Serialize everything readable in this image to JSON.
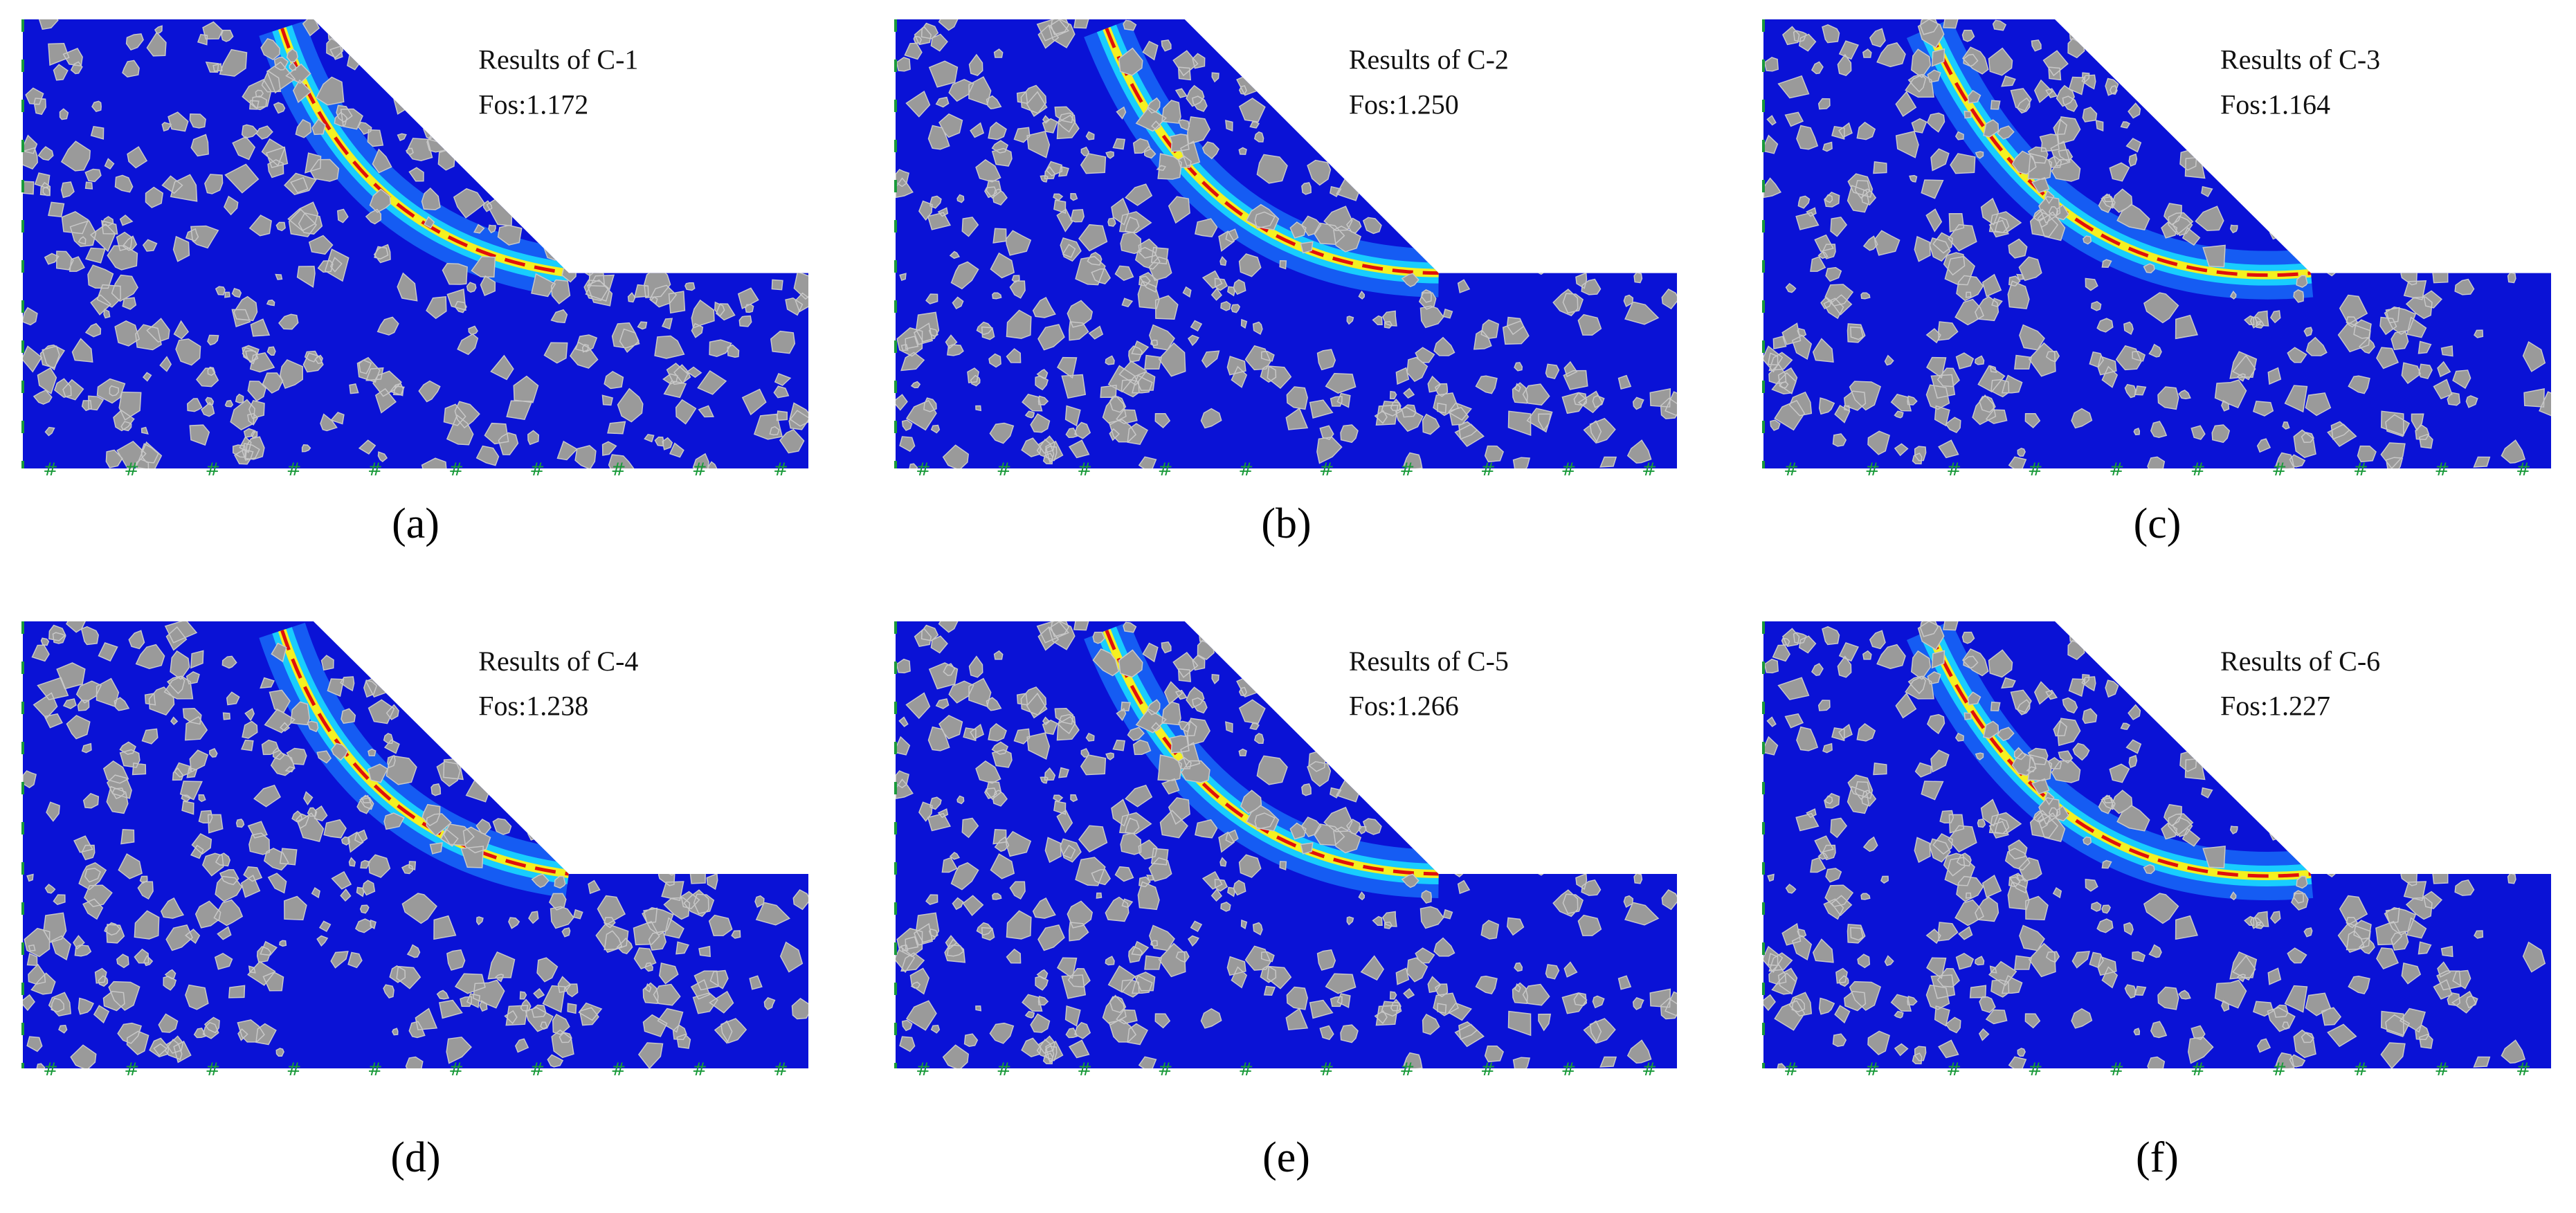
{
  "panels": [
    {
      "title": "Results of C-1",
      "fos": "Fos:1.172",
      "caption": "(a)"
    },
    {
      "title": "Results of C-2",
      "fos": "Fos:1.250",
      "caption": "(b)"
    },
    {
      "title": "Results of C-3",
      "fos": "Fos:1.164",
      "caption": "(c)"
    },
    {
      "title": "Results of C-4",
      "fos": "Fos:1.238",
      "caption": "(d)"
    },
    {
      "title": "Results of C-5",
      "fos": "Fos:1.266",
      "caption": "(e)"
    },
    {
      "title": "Results of C-6",
      "fos": "Fos:1.227",
      "caption": "(f)"
    }
  ]
}
